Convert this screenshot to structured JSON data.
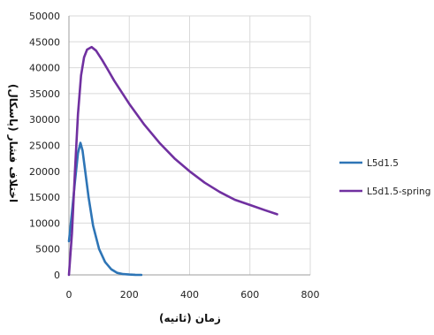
{
  "chart_data": {
    "type": "line",
    "xlabel": "زمان (ثانیه)",
    "ylabel": "اختلاف فشار (پاسکال)",
    "xlim": [
      0,
      800
    ],
    "ylim": [
      0,
      50000
    ],
    "xticks": [
      0,
      200,
      400,
      600,
      800
    ],
    "yticks": [
      0,
      5000,
      10000,
      15000,
      20000,
      25000,
      30000,
      35000,
      40000,
      45000,
      50000
    ],
    "grid": true,
    "legend_position": "right",
    "series": [
      {
        "name": "L5d1.5",
        "color": "#2e75b6",
        "x": [
          0,
          10,
          20,
          30,
          38,
          45,
          55,
          65,
          80,
          100,
          120,
          140,
          160,
          180,
          200,
          220,
          240
        ],
        "y": [
          6500,
          12000,
          18000,
          23500,
          25500,
          24000,
          19500,
          15000,
          9500,
          5000,
          2500,
          1100,
          400,
          150,
          60,
          20,
          0
        ]
      },
      {
        "name": "L5d1.5-spring",
        "color": "#7030a0",
        "x": [
          0,
          10,
          20,
          30,
          40,
          50,
          60,
          75,
          90,
          110,
          130,
          150,
          200,
          250,
          300,
          350,
          400,
          450,
          500,
          550,
          600,
          650,
          690
        ],
        "y": [
          0,
          8000,
          20000,
          31000,
          38500,
          42000,
          43500,
          44000,
          43300,
          41500,
          39500,
          37500,
          33000,
          29000,
          25500,
          22500,
          20000,
          17800,
          16000,
          14500,
          13500,
          12500,
          11700
        ]
      }
    ]
  }
}
